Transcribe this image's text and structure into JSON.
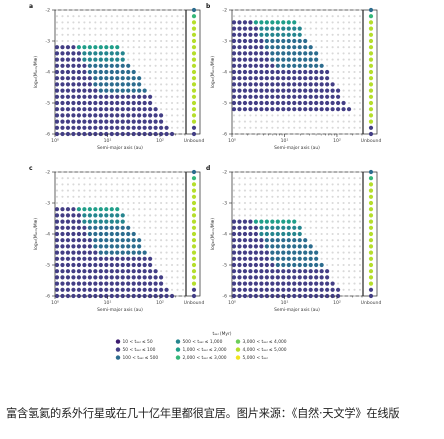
{
  "caption": "富含氢氦的系外行星或在几十亿年里都很宜居。图片来源：《自然·天文学》在线版",
  "chart_data": [
    {
      "panel": "a",
      "type": "scatter",
      "xlabel": "Semi-major axis (au)",
      "ylabel": "log₁₀(Mₐₜₘ/M⊕)",
      "xscale": "log",
      "xlim": [
        1,
        300
      ],
      "ylim": [
        -6,
        -2
      ],
      "xticks": [
        "10⁰",
        "10¹",
        "10²"
      ],
      "yticks": [
        "-2",
        "-3",
        "-4",
        "-5",
        "-6"
      ],
      "unbound_label": "Unbound",
      "unbound_column": [
        2,
        5,
        7,
        7,
        7,
        7,
        7,
        7,
        7,
        7,
        7,
        7,
        7,
        7,
        7,
        7,
        7,
        7,
        7,
        1,
        1
      ],
      "bands": [
        {
          "y": -3.2,
          "segments": [
            [
              0.0,
              0.38,
              1
            ],
            [
              0.38,
              1.25,
              4
            ]
          ]
        },
        {
          "y": -3.4,
          "segments": [
            [
              0.0,
              0.44,
              1
            ],
            [
              0.44,
              1.32,
              3
            ]
          ]
        },
        {
          "y": -3.6,
          "segments": [
            [
              0.0,
              0.5,
              1
            ],
            [
              0.5,
              1.4,
              3
            ]
          ]
        },
        {
          "y": -3.8,
          "segments": [
            [
              0.0,
              0.56,
              1
            ],
            [
              0.56,
              1.48,
              2
            ]
          ]
        },
        {
          "y": -4.0,
          "segments": [
            [
              0.0,
              0.61,
              1
            ],
            [
              0.61,
              1.55,
              2
            ]
          ]
        },
        {
          "y": -4.2,
          "segments": [
            [
              0.0,
              0.67,
              1
            ],
            [
              0.67,
              1.62,
              2
            ]
          ]
        },
        {
          "y": -4.4,
          "segments": [
            [
              0.0,
              0.73,
              1
            ],
            [
              0.73,
              1.7,
              2
            ]
          ]
        },
        {
          "y": -4.6,
          "segments": [
            [
              0.0,
              0.79,
              1
            ],
            [
              0.79,
              1.77,
              2
            ]
          ]
        },
        {
          "y": -4.8,
          "segments": [
            [
              0.0,
              0.84,
              1
            ],
            [
              0.84,
              1.84,
              1
            ]
          ]
        },
        {
          "y": -5.0,
          "segments": [
            [
              0.0,
              0.9,
              1
            ],
            [
              0.9,
              1.92,
              1
            ]
          ]
        },
        {
          "y": -5.2,
          "segments": [
            [
              0.0,
              0.96,
              1
            ],
            [
              0.96,
              1.99,
              1
            ]
          ]
        },
        {
          "y": -5.4,
          "segments": [
            [
              0.0,
              1.02,
              1
            ],
            [
              1.02,
              2.06,
              1
            ]
          ]
        },
        {
          "y": -5.6,
          "segments": [
            [
              0.0,
              1.07,
              1
            ],
            [
              1.07,
              2.14,
              1
            ]
          ]
        },
        {
          "y": -5.8,
          "segments": [
            [
              0.0,
              1.13,
              1
            ],
            [
              1.13,
              2.21,
              1
            ]
          ]
        },
        {
          "y": -6.0,
          "segments": [
            [
              0.0,
              1.19,
              1
            ],
            [
              1.19,
              2.28,
              1
            ]
          ]
        }
      ]
    },
    {
      "panel": "b",
      "type": "scatter",
      "xlabel": "Semi-major axis (au)",
      "ylabel": "log₁₀(Mₐₜₘ/M⊕)",
      "xscale": "log",
      "xlim": [
        1,
        300
      ],
      "ylim": [
        -6,
        -2
      ],
      "xticks": [
        "10⁰",
        "10¹",
        "10²"
      ],
      "yticks": [
        "-2",
        "-3",
        "-4",
        "-5",
        "-6"
      ],
      "unbound_label": "Unbound",
      "unbound_column": [
        2,
        5,
        7,
        7,
        7,
        7,
        7,
        7,
        7,
        7,
        7,
        7,
        7,
        7,
        7,
        7,
        7,
        7,
        7,
        1,
        1
      ],
      "bands": [
        {
          "y": -2.4,
          "segments": [
            [
              0.0,
              0.38,
              1
            ],
            [
              0.38,
              1.25,
              4
            ]
          ]
        },
        {
          "y": -2.6,
          "segments": [
            [
              0.0,
              0.44,
              1
            ],
            [
              0.44,
              1.32,
              3
            ]
          ]
        },
        {
          "y": -2.8,
          "segments": [
            [
              0.0,
              0.5,
              1
            ],
            [
              0.5,
              1.4,
              3
            ]
          ]
        },
        {
          "y": -3.0,
          "segments": [
            [
              0.0,
              0.56,
              1
            ],
            [
              0.56,
              1.48,
              2
            ]
          ]
        },
        {
          "y": -3.2,
          "segments": [
            [
              0.0,
              0.61,
              1
            ],
            [
              0.61,
              1.55,
              2
            ]
          ]
        },
        {
          "y": -3.4,
          "segments": [
            [
              0.0,
              0.67,
              1
            ],
            [
              0.67,
              1.62,
              2
            ]
          ]
        },
        {
          "y": -3.6,
          "segments": [
            [
              0.0,
              0.73,
              1
            ],
            [
              0.73,
              1.7,
              2
            ]
          ]
        },
        {
          "y": -3.8,
          "segments": [
            [
              0.0,
              0.79,
              1
            ],
            [
              0.79,
              1.77,
              2
            ]
          ]
        },
        {
          "y": -4.0,
          "segments": [
            [
              0.0,
              0.84,
              1
            ],
            [
              0.84,
              1.84,
              1
            ]
          ]
        },
        {
          "y": -4.2,
          "segments": [
            [
              0.0,
              0.9,
              1
            ],
            [
              0.9,
              1.92,
              1
            ]
          ]
        },
        {
          "y": -4.4,
          "segments": [
            [
              0.0,
              0.96,
              1
            ],
            [
              0.96,
              1.99,
              1
            ]
          ]
        },
        {
          "y": -4.6,
          "segments": [
            [
              0.0,
              1.02,
              1
            ],
            [
              1.02,
              2.06,
              1
            ]
          ]
        },
        {
          "y": -4.8,
          "segments": [
            [
              0.0,
              1.07,
              1
            ],
            [
              1.07,
              2.14,
              1
            ]
          ]
        },
        {
          "y": -5.0,
          "segments": [
            [
              0.0,
              1.13,
              1
            ],
            [
              1.13,
              2.21,
              1
            ]
          ]
        },
        {
          "y": -5.2,
          "segments": [
            [
              0.0,
              1.19,
              1
            ],
            [
              1.19,
              2.28,
              1
            ]
          ]
        }
      ]
    },
    {
      "panel": "c",
      "type": "scatter",
      "xlabel": "Semi-major axis (au)",
      "ylabel": "log₁₀(Mₐₜₘ/M⊕)",
      "xscale": "log",
      "xlim": [
        1,
        300
      ],
      "ylim": [
        -6,
        -2
      ],
      "xticks": [
        "10⁰",
        "10¹",
        "10²"
      ],
      "yticks": [
        "-2",
        "-3",
        "-4",
        "-5",
        "-6"
      ],
      "unbound_label": "Unbound",
      "unbound_column": [
        2,
        5,
        7,
        7,
        7,
        7,
        7,
        7,
        7,
        7,
        7,
        7,
        7,
        7,
        7,
        7,
        7,
        7,
        7,
        1,
        1
      ],
      "bands": [
        {
          "y": -3.2,
          "segments": [
            [
              0.0,
              0.38,
              1
            ],
            [
              0.38,
              1.25,
              4
            ]
          ]
        },
        {
          "y": -3.4,
          "segments": [
            [
              0.0,
              0.44,
              1
            ],
            [
              0.44,
              1.32,
              3
            ]
          ]
        },
        {
          "y": -3.6,
          "segments": [
            [
              0.0,
              0.5,
              1
            ],
            [
              0.5,
              1.4,
              3
            ]
          ]
        },
        {
          "y": -3.8,
          "segments": [
            [
              0.0,
              0.56,
              1
            ],
            [
              0.56,
              1.48,
              2
            ]
          ]
        },
        {
          "y": -4.0,
          "segments": [
            [
              0.0,
              0.61,
              1
            ],
            [
              0.61,
              1.55,
              2
            ]
          ]
        },
        {
          "y": -4.2,
          "segments": [
            [
              0.0,
              0.67,
              1
            ],
            [
              0.67,
              1.62,
              2
            ]
          ]
        },
        {
          "y": -4.4,
          "segments": [
            [
              0.0,
              0.73,
              1
            ],
            [
              0.73,
              1.7,
              2
            ]
          ]
        },
        {
          "y": -4.6,
          "segments": [
            [
              0.0,
              0.79,
              1
            ],
            [
              0.79,
              1.77,
              2
            ]
          ]
        },
        {
          "y": -4.8,
          "segments": [
            [
              0.0,
              0.84,
              1
            ],
            [
              0.84,
              1.84,
              1
            ]
          ]
        },
        {
          "y": -5.0,
          "segments": [
            [
              0.0,
              0.9,
              1
            ],
            [
              0.9,
              1.92,
              1
            ]
          ]
        },
        {
          "y": -5.2,
          "segments": [
            [
              0.0,
              0.96,
              1
            ],
            [
              0.96,
              1.99,
              1
            ]
          ]
        },
        {
          "y": -5.4,
          "segments": [
            [
              0.0,
              1.02,
              1
            ],
            [
              1.02,
              2.06,
              1
            ]
          ]
        },
        {
          "y": -5.6,
          "segments": [
            [
              0.0,
              1.07,
              1
            ],
            [
              1.07,
              2.14,
              1
            ]
          ]
        },
        {
          "y": -5.8,
          "segments": [
            [
              0.0,
              1.13,
              1
            ],
            [
              1.13,
              2.21,
              1
            ]
          ]
        },
        {
          "y": -6.0,
          "segments": [
            [
              0.0,
              1.19,
              1
            ],
            [
              1.19,
              2.28,
              1
            ]
          ]
        }
      ]
    },
    {
      "panel": "d",
      "type": "scatter",
      "xlabel": "Semi-major axis (au)",
      "ylabel": "log₁₀(Mₐₜₘ/M⊕)",
      "xscale": "log",
      "xlim": [
        1,
        300
      ],
      "ylim": [
        -6,
        -2
      ],
      "xticks": [
        "10⁰",
        "10¹",
        "10²"
      ],
      "yticks": [
        "-2",
        "-3",
        "-4",
        "-5",
        "-6"
      ],
      "unbound_label": "Unbound",
      "unbound_column": [
        2,
        5,
        7,
        7,
        7,
        7,
        7,
        7,
        7,
        7,
        7,
        7,
        7,
        7,
        7,
        7,
        7,
        7,
        7,
        1,
        1
      ],
      "bands": [
        {
          "y": -3.6,
          "segments": [
            [
              0.0,
              0.38,
              1
            ],
            [
              0.38,
              1.25,
              4
            ]
          ]
        },
        {
          "y": -3.8,
          "segments": [
            [
              0.0,
              0.44,
              1
            ],
            [
              0.44,
              1.32,
              3
            ]
          ]
        },
        {
          "y": -4.0,
          "segments": [
            [
              0.0,
              0.5,
              1
            ],
            [
              0.5,
              1.4,
              3
            ]
          ]
        },
        {
          "y": -4.2,
          "segments": [
            [
              0.0,
              0.56,
              1
            ],
            [
              0.56,
              1.48,
              2
            ]
          ]
        },
        {
          "y": -4.4,
          "segments": [
            [
              0.0,
              0.61,
              1
            ],
            [
              0.61,
              1.55,
              2
            ]
          ]
        },
        {
          "y": -4.6,
          "segments": [
            [
              0.0,
              0.67,
              1
            ],
            [
              0.67,
              1.62,
              2
            ]
          ]
        },
        {
          "y": -4.8,
          "segments": [
            [
              0.0,
              0.73,
              1
            ],
            [
              0.73,
              1.7,
              2
            ]
          ]
        },
        {
          "y": -5.0,
          "segments": [
            [
              0.0,
              0.79,
              1
            ],
            [
              0.79,
              1.77,
              2
            ]
          ]
        },
        {
          "y": -5.2,
          "segments": [
            [
              0.0,
              0.84,
              1
            ],
            [
              0.84,
              1.84,
              1
            ]
          ]
        },
        {
          "y": -5.4,
          "segments": [
            [
              0.0,
              0.9,
              1
            ],
            [
              0.9,
              1.92,
              1
            ]
          ]
        },
        {
          "y": -5.6,
          "segments": [
            [
              0.0,
              0.96,
              1
            ],
            [
              0.96,
              1.99,
              1
            ]
          ]
        },
        {
          "y": -5.8,
          "segments": [
            [
              0.0,
              1.02,
              1
            ],
            [
              1.02,
              2.06,
              1
            ]
          ]
        },
        {
          "y": -6.0,
          "segments": [
            [
              0.0,
              1.07,
              1
            ],
            [
              1.07,
              2.14,
              1
            ]
          ]
        }
      ]
    }
  ],
  "legend": {
    "title": "tₐₑₗ (Myr)",
    "entries": [
      "10 < tₐₑₗ ≤ 50",
      "50 < tₐₑₗ ≤ 100",
      "100 < tₐₑₗ ≤ 500",
      "500 < tₐₑₗ ≤ 1,000",
      "1,000 < tₐₑₗ ≤ 2,000",
      "2,000 < tₐₑₗ ≤ 3,000",
      "3,000 < tₐₑₗ ≤ 4,000",
      "4,000 < tₐₑₗ ≤ 5,000",
      "5,000 < tₐₑₗ"
    ]
  },
  "colors": {
    "bins": [
      "#3b1a6e",
      "#433e85",
      "#2c6c8e",
      "#25858e",
      "#1f9e89",
      "#35b779",
      "#6ccd5a",
      "#b5de2b",
      "#f2e41d"
    ],
    "empty": "#d9d9d9",
    "axis": "#222222"
  }
}
